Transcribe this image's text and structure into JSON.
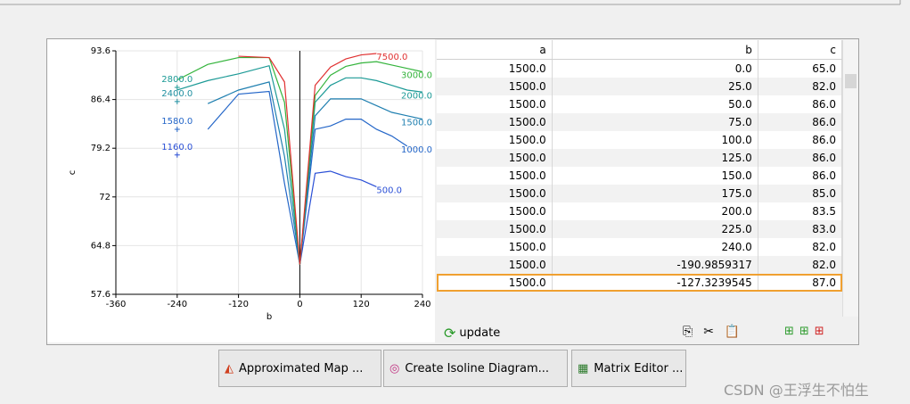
{
  "chart_data": {
    "type": "line",
    "xlabel": "b",
    "ylabel": "c",
    "xlim": [
      -360,
      240
    ],
    "xticks": [
      -360,
      -240,
      -120,
      0,
      120,
      240
    ],
    "ylim": [
      57.6,
      93.6
    ],
    "yticks": [
      57.6,
      64.8,
      72,
      79.2,
      86.4,
      93.6
    ],
    "grid": true,
    "x": [
      -240,
      -180,
      -120,
      -60,
      -30,
      0,
      30,
      60,
      90,
      120,
      150,
      180,
      210,
      240
    ],
    "series": [
      {
        "name": "500.0",
        "color": "#2a4fd6",
        "values": [
          null,
          null,
          null,
          null,
          null,
          62,
          75.5,
          75.8,
          75,
          74.5,
          73.5,
          null,
          null,
          null
        ]
      },
      {
        "name": "1000.0",
        "color": "#2466c8",
        "values": [
          null,
          82,
          87.2,
          87.6,
          74,
          62,
          82,
          82.5,
          83.5,
          83.5,
          82,
          81,
          79.5,
          null
        ]
      },
      {
        "name": "1500.0",
        "color": "#1f7fb0",
        "values": [
          null,
          85.8,
          87.8,
          89,
          78,
          62,
          84,
          86.5,
          86.5,
          86.5,
          85.5,
          84.5,
          84,
          83.5
        ]
      },
      {
        "name": "2000.0",
        "color": "#1c9a96",
        "values": [
          87.8,
          89.2,
          90.2,
          91.4,
          82,
          62,
          86,
          88.5,
          89.6,
          89.6,
          89.2,
          88.5,
          87.8,
          87.5
        ]
      },
      {
        "name": "3000.0",
        "color": "#34b43c",
        "values": [
          89.3,
          91.6,
          92.6,
          92.6,
          86,
          62,
          87,
          90,
          91.3,
          91.8,
          92,
          91.5,
          91,
          90.5
        ]
      },
      {
        "name": "7500.0",
        "color": "#e03030",
        "values": [
          null,
          null,
          92.8,
          92.6,
          89,
          62,
          88.5,
          91.2,
          92.4,
          93,
          93.2,
          null,
          null,
          null
        ]
      }
    ],
    "points": [
      {
        "label": "2800.0",
        "x": -240,
        "y": 88.2,
        "color": "#1c9a96"
      },
      {
        "label": "2400.0",
        "x": -240,
        "y": 86.1,
        "color": "#1f8fa0"
      },
      {
        "label": "1580.0",
        "x": -240,
        "y": 82,
        "color": "#2466c8"
      },
      {
        "label": "1160.0",
        "x": -240,
        "y": 78.2,
        "color": "#2a4fd6"
      }
    ]
  },
  "table": {
    "columns": [
      "a",
      "b",
      "c"
    ],
    "selected_row": 12,
    "rows": [
      [
        "1500.0",
        "0.0",
        "65.0"
      ],
      [
        "1500.0",
        "25.0",
        "82.0"
      ],
      [
        "1500.0",
        "50.0",
        "86.0"
      ],
      [
        "1500.0",
        "75.0",
        "86.0"
      ],
      [
        "1500.0",
        "100.0",
        "86.0"
      ],
      [
        "1500.0",
        "125.0",
        "86.0"
      ],
      [
        "1500.0",
        "150.0",
        "86.0"
      ],
      [
        "1500.0",
        "175.0",
        "85.0"
      ],
      [
        "1500.0",
        "200.0",
        "83.5"
      ],
      [
        "1500.0",
        "225.0",
        "83.0"
      ],
      [
        "1500.0",
        "240.0",
        "82.0"
      ],
      [
        "1500.0",
        "-190.9859317",
        "82.0"
      ],
      [
        "1500.0",
        "-127.3239545",
        "87.0"
      ]
    ]
  },
  "toolbar": {
    "update": "update"
  },
  "buttons": [
    "Approximated Map ...",
    "Create Isoline Diagram...",
    "Matrix Editor ..."
  ],
  "watermark": "CSDN @王浮生不怕生"
}
